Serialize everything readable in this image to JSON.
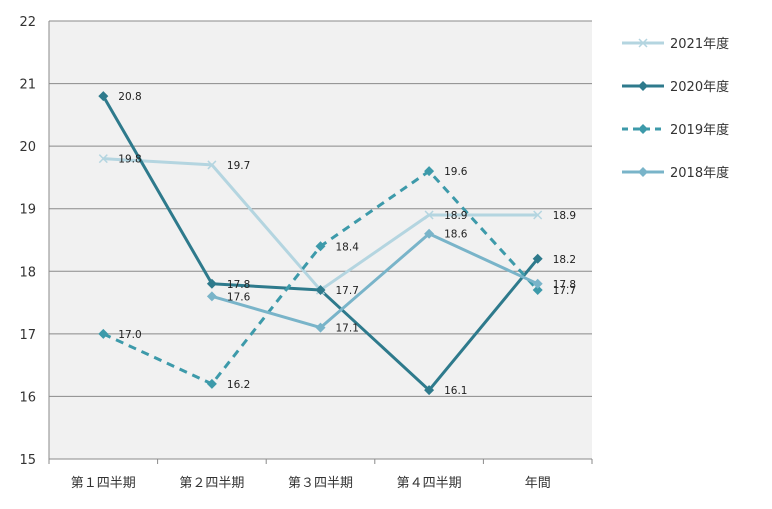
{
  "chart_data": {
    "type": "line",
    "categories": [
      "第１四半期",
      "第２四半期",
      "第３四半期",
      "第４四半期",
      "年間"
    ],
    "ylim": [
      15,
      22
    ],
    "yticks": [
      15,
      16,
      17,
      18,
      19,
      20,
      21,
      22
    ],
    "grid": true,
    "legend_position": "right",
    "series": [
      {
        "name": "2021年度",
        "values": [
          19.8,
          19.7,
          17.7,
          18.9,
          18.9
        ],
        "labels": [
          "19.8",
          "19.7",
          "",
          "18.9",
          "18.9"
        ],
        "color": "#b4d5e0",
        "marker": "x",
        "dashed": false,
        "width": 3
      },
      {
        "name": "2020年度",
        "values": [
          20.8,
          17.8,
          17.7,
          16.1,
          18.2
        ],
        "labels": [
          "20.8",
          "17.8",
          "17.7",
          "16.1",
          "18.2"
        ],
        "color": "#2e7a8c",
        "marker": "diamond",
        "dashed": false,
        "width": 3
      },
      {
        "name": "2019年度",
        "values": [
          17.0,
          16.2,
          18.4,
          19.6,
          17.7
        ],
        "labels": [
          "17.0",
          "16.2",
          "18.4",
          "19.6",
          "17.7"
        ],
        "color": "#3d9aaa",
        "marker": "diamond",
        "dashed": true,
        "width": 3
      },
      {
        "name": "2018年度",
        "values": [
          null,
          17.6,
          17.1,
          18.6,
          17.8
        ],
        "labels": [
          "",
          "17.6",
          "17.1",
          "18.6",
          "17.8"
        ],
        "color": "#79b4c9",
        "marker": "diamond",
        "dashed": false,
        "width": 3
      }
    ]
  }
}
